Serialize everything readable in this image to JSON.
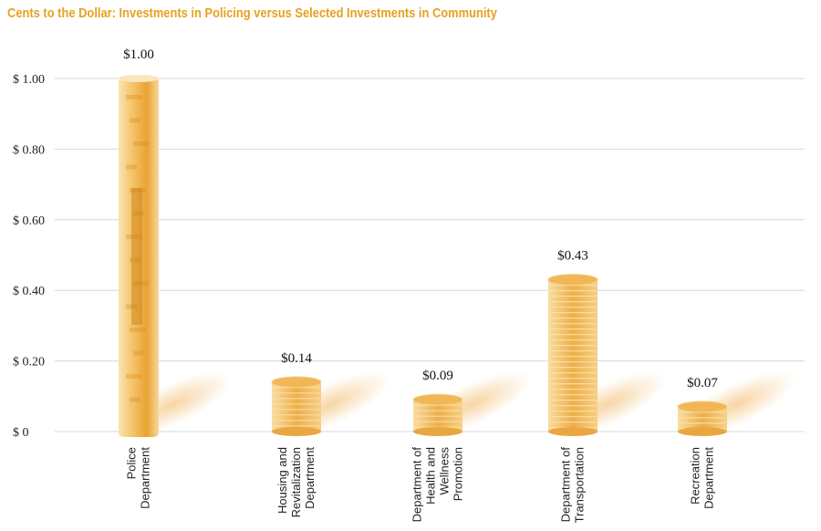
{
  "chart_data": {
    "type": "bar",
    "title": "Cents to the Dollar: Investments in Policing versus Selected Investments in Community",
    "categories": [
      [
        "Police",
        "Department"
      ],
      [
        "Housing and",
        "Revitalization",
        "Department"
      ],
      [
        "Department of",
        "Health and",
        "Wellness",
        "Promotion"
      ],
      [
        "Department of",
        "Transportation"
      ],
      [
        "Recreation",
        "Department"
      ]
    ],
    "values": [
      1.0,
      0.14,
      0.09,
      0.43,
      0.07
    ],
    "value_labels": [
      "$1.00",
      "$0.14",
      "$0.09",
      "$0.43",
      "$0.07"
    ],
    "y_ticks": [
      {
        "value": 0,
        "label": "$ 0"
      },
      {
        "value": 0.2,
        "label": "$ 0.20"
      },
      {
        "value": 0.4,
        "label": "$ 0.40"
      },
      {
        "value": 0.6,
        "label": "$ 0.60"
      },
      {
        "value": 0.8,
        "label": "$ 0.80"
      },
      {
        "value": 1.0,
        "label": "$ 1.00"
      }
    ],
    "ylim": [
      0,
      1.0
    ],
    "grid": true,
    "bar_styles": [
      "dollar-bill",
      "coin-stack",
      "coin-stack",
      "coin-stack",
      "coin-stack"
    ],
    "colors": {
      "title": "#e8a020",
      "bill_light": "#f6d08a",
      "bill_dark": "#e49a26",
      "coin_light": "#f8d590",
      "coin_dark": "#e6a033",
      "coin_edge": "#fbe7bd",
      "grid": "#d8d8d8"
    }
  }
}
